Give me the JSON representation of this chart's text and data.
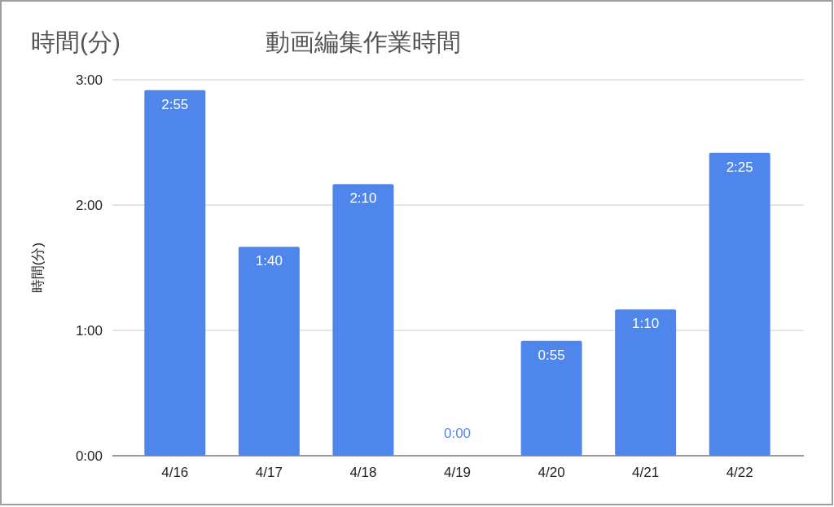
{
  "chart_data": {
    "type": "bar",
    "title": "動画編集作業時間",
    "annotations": [
      "時間(分)"
    ],
    "ylabel": "時間(分)",
    "categories": [
      "4/16",
      "4/17",
      "4/18",
      "4/19",
      "4/20",
      "4/21",
      "4/22"
    ],
    "values": [
      2.9167,
      1.6667,
      2.1667,
      0,
      0.9167,
      1.1667,
      2.4167
    ],
    "value_labels": [
      "2:55",
      "1:40",
      "2:10",
      "0:00",
      "0:55",
      "1:10",
      "2:25"
    ],
    "color": "#4f86ec",
    "ylim": [
      0,
      3
    ],
    "yticks": [
      {
        "value": 0,
        "label": "0:00"
      },
      {
        "value": 1,
        "label": "1:00"
      },
      {
        "value": 2,
        "label": "2:00"
      },
      {
        "value": 3,
        "label": "3:00"
      }
    ],
    "grid": "y"
  }
}
